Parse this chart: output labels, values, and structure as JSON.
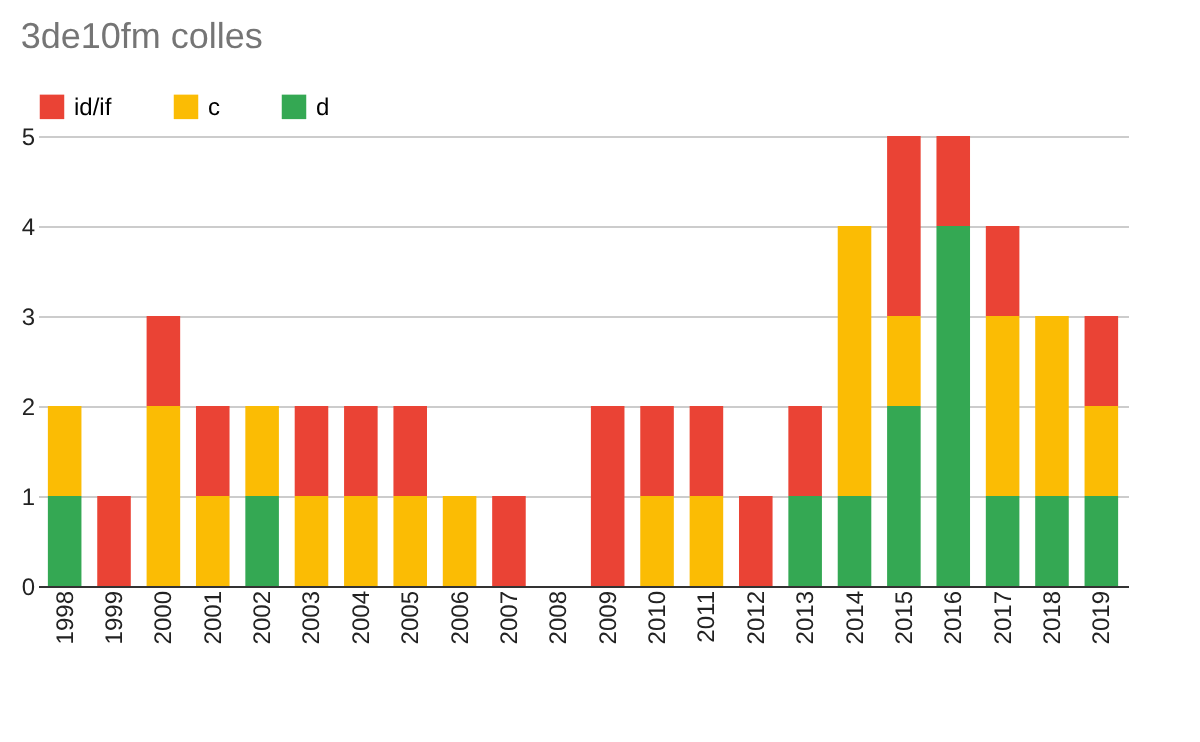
{
  "chart_data": {
    "type": "bar",
    "title": "3de10fm colles",
    "stacked": true,
    "legend": "top",
    "grid": "y",
    "categories": [
      "1998",
      "1999",
      "2000",
      "2001",
      "2002",
      "2003",
      "2004",
      "2005",
      "2006",
      "2007",
      "2008",
      "2009",
      "2010",
      "2011",
      "2012",
      "2013",
      "2014",
      "2015",
      "2016",
      "2017",
      "2018",
      "2019"
    ],
    "ylim": [
      0,
      5
    ],
    "yticks": [
      0,
      1,
      2,
      3,
      4,
      5
    ],
    "series": [
      {
        "name": "d",
        "color": "#34a853",
        "values": [
          1,
          0,
          0,
          0,
          1,
          0,
          0,
          0,
          0,
          0,
          0,
          0,
          0,
          0,
          0,
          1,
          1,
          2,
          4,
          1,
          1,
          1
        ]
      },
      {
        "name": "c",
        "color": "#fbbc04",
        "values": [
          1,
          0,
          2,
          1,
          1,
          1,
          1,
          1,
          1,
          0,
          0,
          0,
          1,
          1,
          0,
          0,
          3,
          1,
          0,
          2,
          2,
          1
        ]
      },
      {
        "name": "id/if",
        "color": "#ea4335",
        "values": [
          0,
          1,
          1,
          1,
          0,
          1,
          1,
          1,
          0,
          1,
          0,
          2,
          1,
          1,
          1,
          1,
          0,
          2,
          1,
          1,
          0,
          1
        ]
      }
    ]
  }
}
